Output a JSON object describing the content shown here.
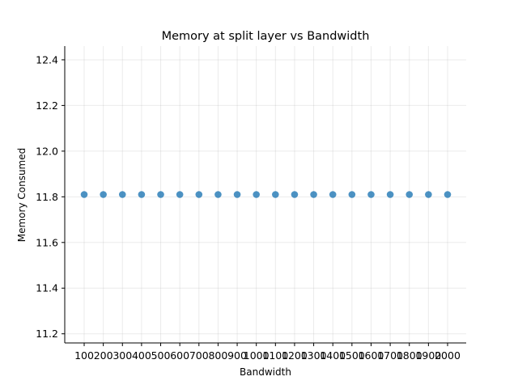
{
  "chart_data": {
    "type": "scatter",
    "title": "Memory at split layer vs Bandwidth",
    "xlabel": "Bandwidth",
    "ylabel": "Memory Consumed",
    "categories": [
      "100",
      "200",
      "300",
      "400",
      "500",
      "600",
      "700",
      "800",
      "900",
      "1000",
      "1100",
      "1200",
      "1300",
      "1400",
      "1500",
      "1600",
      "1700",
      "1800",
      "1900",
      "2000"
    ],
    "values": [
      11.81,
      11.81,
      11.81,
      11.81,
      11.81,
      11.81,
      11.81,
      11.81,
      11.81,
      11.81,
      11.81,
      11.81,
      11.81,
      11.81,
      11.81,
      11.81,
      11.81,
      11.81,
      11.81,
      11.81
    ],
    "yticks": [
      "11.2",
      "11.4",
      "11.6",
      "11.8",
      "12.0",
      "12.2",
      "12.4"
    ],
    "ylim": [
      11.16,
      12.46
    ],
    "grid": true,
    "legend": "none",
    "colors": {
      "points": "#1f77b4"
    }
  }
}
